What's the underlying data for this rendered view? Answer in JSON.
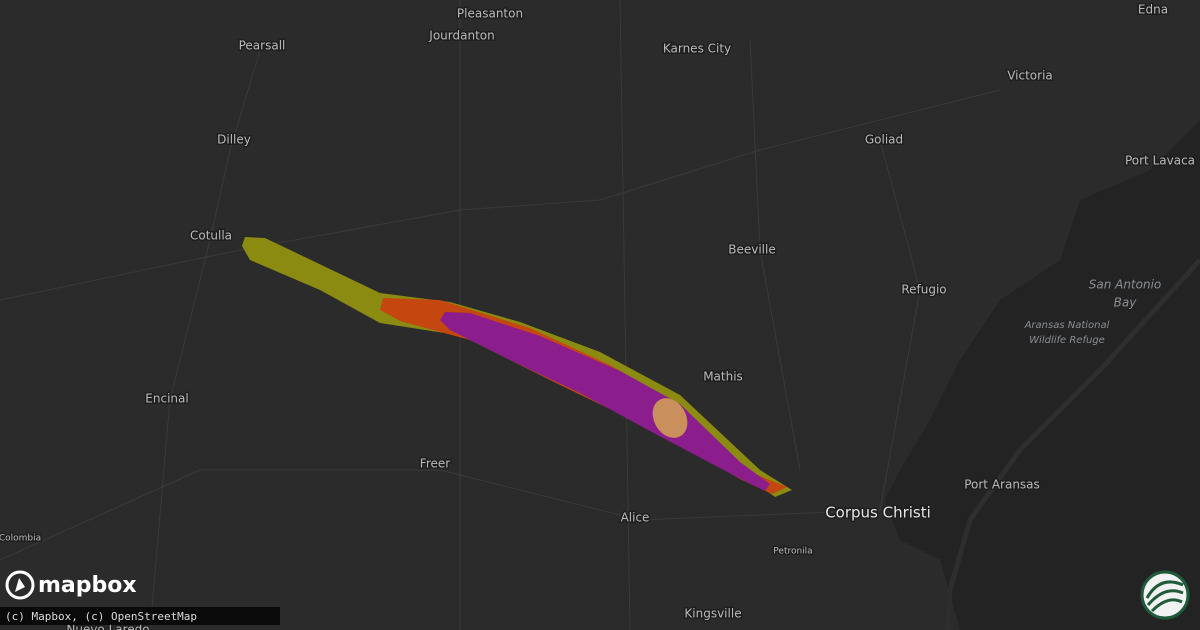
{
  "places": [
    "Pleasanton",
    "Jourdanton",
    "Karnes City",
    "Edna",
    "Pearsall",
    "Victoria",
    "Dilley",
    "Goliad",
    "Port Lavaca",
    "Cotulla",
    "Beeville",
    "Refugio",
    "Mathis",
    "Encinal",
    "Freer",
    "Alice",
    "Corpus Christi",
    "Port Aransas",
    "Petronila",
    "Kingsville",
    "Colombia",
    "Nuevo Laredo"
  ],
  "water_labels": [
    "San Antonio",
    "Bay",
    "Aransas National",
    "Wildlife Refuge"
  ],
  "logo": "mapbox",
  "attribution": "(c) Mapbox, (c) OpenStreetMap"
}
